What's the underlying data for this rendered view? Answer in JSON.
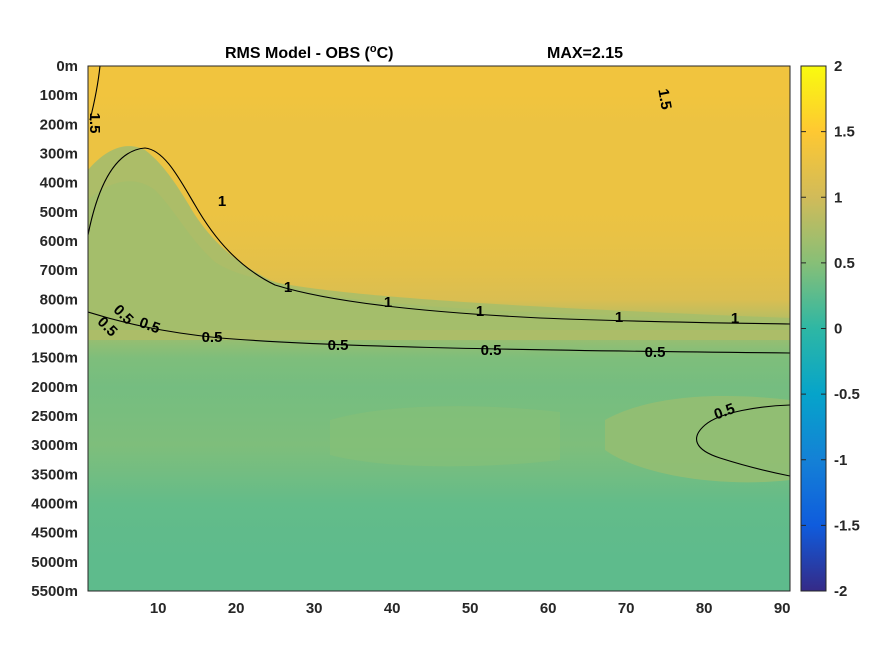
{
  "chart_data": {
    "type": "heatmap",
    "title": "RMS Model - OBS (",
    "title_sup": "o",
    "title_unit": "C)",
    "max_label": "MAX=2.15",
    "colormap": "parula",
    "xlim": [
      1,
      91
    ],
    "x_ticks": [
      "10",
      "20",
      "30",
      "40",
      "50",
      "60",
      "70",
      "80",
      "90"
    ],
    "x_tick_values": [
      10,
      20,
      30,
      40,
      50,
      60,
      70,
      80,
      90
    ],
    "y_tick_labels": [
      "0m",
      "100m",
      "200m",
      "300m",
      "400m",
      "500m",
      "600m",
      "700m",
      "800m",
      "1000m",
      "1500m",
      "2000m",
      "2500m",
      "3000m",
      "3500m",
      "4000m",
      "4500m",
      "5000m",
      "5500m"
    ],
    "colorbar": {
      "clim": [
        -2,
        2
      ],
      "ticks": [
        "2",
        "1.5",
        "1",
        "0.5",
        "0",
        "-0.5",
        "-1",
        "-1.5",
        "-2"
      ],
      "tick_values": [
        2,
        1.5,
        1,
        0.5,
        0,
        -0.5,
        -1,
        -1.5,
        -2
      ]
    },
    "contour_levels": [
      0.5,
      1,
      1.5
    ],
    "contour_labels": [
      "0.5",
      "0.5",
      "0.5",
      "0.5",
      "0.5",
      "0.5",
      "0.5",
      "0.5",
      "1.5",
      "1.5",
      "1",
      "1",
      "1",
      "1",
      "1",
      "1"
    ],
    "value_profile": {
      "depth_index": [
        0,
        1,
        2,
        3,
        4,
        5,
        6,
        7,
        8,
        9,
        10,
        11,
        12,
        13,
        14,
        15,
        16,
        17,
        18
      ],
      "values": [
        1.35,
        1.35,
        1.3,
        1.3,
        1.3,
        1.3,
        1.25,
        1.2,
        1.1,
        0.7,
        0.45,
        0.4,
        0.42,
        0.45,
        0.38,
        0.3,
        0.28,
        0.27,
        0.27
      ]
    }
  }
}
